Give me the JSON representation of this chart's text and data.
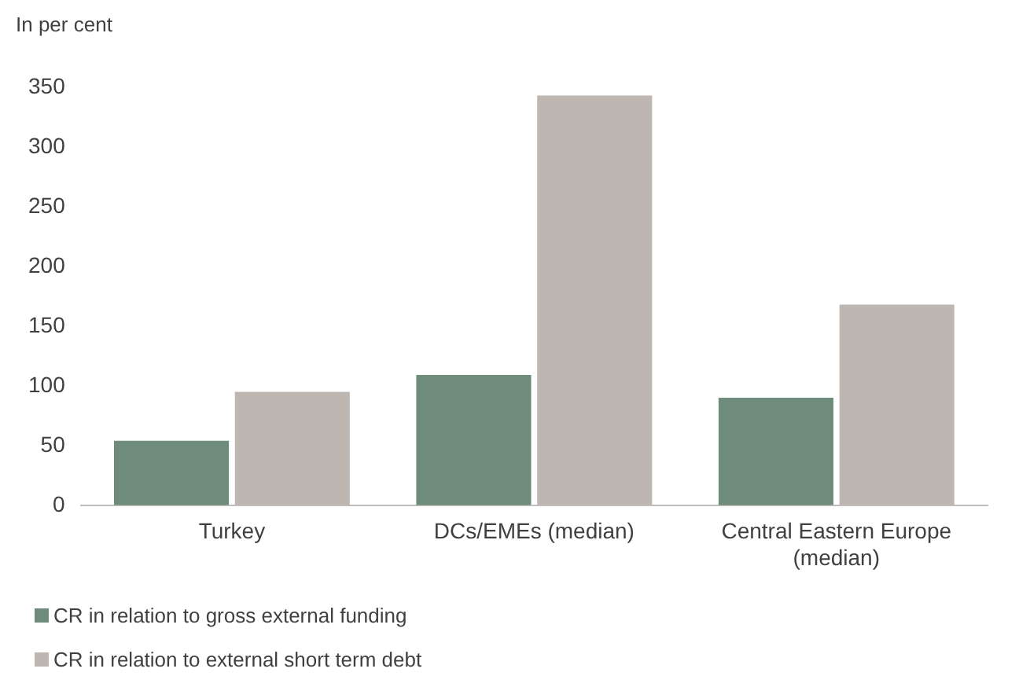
{
  "chart_data": {
    "type": "bar",
    "ylabel": "In per cent",
    "categories": [
      "Turkey",
      "DCs/EMEs (median)",
      "Central Eastern Europe (median)"
    ],
    "series": [
      {
        "name": "CR in relation to gross external funding",
        "color": "#6f8b7c",
        "values": [
          54,
          109,
          90
        ]
      },
      {
        "name": "CR in relation to external short term debt",
        "color": "#bdb6b1",
        "values": [
          95,
          343,
          168
        ]
      }
    ],
    "ylim": [
      0,
      350
    ],
    "yticks": [
      0,
      50,
      100,
      150,
      200,
      250,
      300,
      350
    ],
    "grid": false,
    "legend": "bottom"
  }
}
